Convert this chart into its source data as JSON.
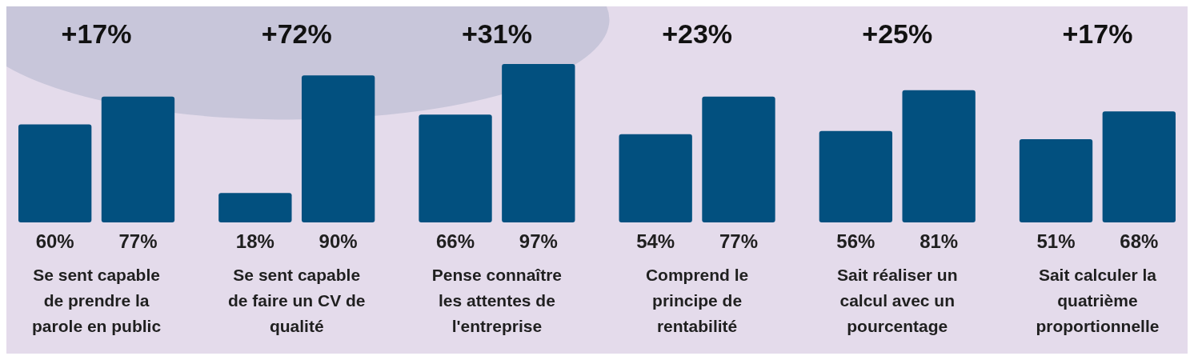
{
  "chart_data": {
    "type": "bar",
    "categories": [
      "Se sent capable\nde prendre la\nparole en public",
      "Se sent capable\nde faire un CV de\nqualité",
      "Pense connaître\nles attentes de\nl'entreprise",
      "Comprend le\nprincipe de\nrentabilité",
      "Sait réaliser un\ncalcul avec un\npourcentage",
      "Sait calculer la\nquatrième\nproportionnelle"
    ],
    "series": [
      {
        "color": "#02507f",
        "values": [
          60,
          18,
          66,
          54,
          56,
          51
        ],
        "value_labels": [
          "60%",
          "18%",
          "66%",
          "54%",
          "56%",
          "51%"
        ]
      },
      {
        "color": "#02507f",
        "values": [
          77,
          90,
          97,
          77,
          81,
          68
        ],
        "value_labels": [
          "77%",
          "90%",
          "97%",
          "77%",
          "81%",
          "68%"
        ]
      }
    ],
    "annotations": [
      "+17%",
      "+72%",
      "+31%",
      "+23%",
      "+25%",
      "+17%"
    ]
  }
}
